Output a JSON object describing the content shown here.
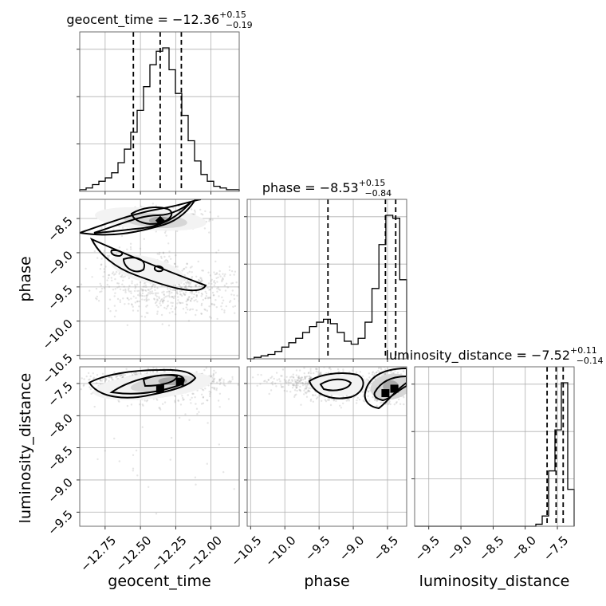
{
  "chart_data": {
    "type": "scatter",
    "subtype": "corner-plot",
    "parameters": [
      {
        "name": "geocent_time",
        "median": -12.36,
        "err_plus": 0.15,
        "err_minus": 0.19,
        "range": [
          -12.93,
          -11.8
        ]
      },
      {
        "name": "phase",
        "median": -8.53,
        "err_plus": 0.15,
        "err_minus": 0.84,
        "range": [
          -10.55,
          -8.22
        ]
      },
      {
        "name": "luminosity_distance",
        "median": -7.52,
        "err_plus": 0.11,
        "err_minus": 0.14,
        "range": [
          -9.72,
          -7.24
        ]
      }
    ],
    "titles": {
      "geocent_time": {
        "prefix": "geocent_time = −12.36",
        "plus": "+0.15",
        "minus": "−0.19"
      },
      "phase": {
        "prefix": "phase = −8.53",
        "plus": "+0.15",
        "minus": "−0.84"
      },
      "luminosity_distance": {
        "prefix": "luminosity_distance = −7.52",
        "plus": "+0.11",
        "minus": "−0.14"
      }
    },
    "axis_labels": {
      "x": [
        "geocent_time",
        "phase",
        "luminosity_distance"
      ],
      "y": [
        "phase",
        "luminosity_distance"
      ]
    },
    "ticks": {
      "geocent_time": [
        -12.75,
        -12.5,
        -12.25,
        -12.0
      ],
      "phase": [
        -10.5,
        -10.0,
        -9.5,
        -9.0,
        -8.5
      ],
      "luminosity_distance": [
        -9.5,
        -9.0,
        -8.5,
        -8.0,
        -7.5
      ]
    },
    "tick_labels": {
      "geocent_time": [
        "−12.75",
        "−12.50",
        "−12.25",
        "−12.00"
      ],
      "phase": [
        "−10.5",
        "−10.0",
        "−9.5",
        "−9.0",
        "−8.5"
      ],
      "luminosity_distance": [
        "−9.5",
        "−9.0",
        "−8.5",
        "−8.0",
        "−7.5"
      ]
    },
    "quantiles": {
      "geocent_time": [
        -12.55,
        -12.36,
        -12.21
      ],
      "phase": [
        -9.37,
        -8.53,
        -8.38
      ],
      "luminosity_distance": [
        -7.66,
        -7.52,
        -7.41
      ]
    },
    "histograms": {
      "geocent_time": {
        "edges_from": -12.93,
        "edges_to": -11.8,
        "counts": [
          1,
          2,
          4,
          6,
          8,
          11,
          17,
          25,
          35,
          48,
          62,
          75,
          83,
          85,
          72,
          58,
          45,
          30,
          18,
          10,
          6,
          3,
          2,
          1,
          1
        ]
      },
      "phase": {
        "edges_from": -10.55,
        "edges_to": -8.22,
        "counts": [
          0,
          1,
          2,
          3,
          5,
          8,
          11,
          14,
          18,
          22,
          25,
          27,
          24,
          18,
          12,
          10,
          14,
          25,
          48,
          78,
          98,
          96,
          54
        ]
      },
      "luminosity_distance": {
        "edges_from": -9.72,
        "edges_to": -7.24,
        "counts": [
          0,
          0,
          0,
          0,
          0,
          0,
          0,
          0,
          0,
          0,
          0,
          0,
          0,
          0,
          0,
          0,
          0,
          0,
          0,
          1,
          5,
          27,
          47,
          70,
          18
        ]
      }
    },
    "grid": true,
    "markers": [
      {
        "x_param": "geocent_time",
        "y_param": "phase",
        "x": -12.36,
        "y": -8.53,
        "shape": "diamond"
      },
      {
        "x_param": "geocent_time",
        "y_param": "luminosity_distance",
        "x": -12.36,
        "y": -7.58,
        "shape": "square"
      },
      {
        "x_param": "geocent_time",
        "y_param": "luminosity_distance",
        "x": -12.22,
        "y": -7.47,
        "shape": "square"
      },
      {
        "x_param": "phase",
        "y_param": "luminosity_distance",
        "x": -8.53,
        "y": -7.65,
        "shape": "square"
      },
      {
        "x_param": "phase",
        "y_param": "luminosity_distance",
        "x": -8.4,
        "y": -7.58,
        "shape": "square"
      }
    ],
    "colors": {
      "contours": "#000000",
      "density": "#8a8a8a",
      "grid": "#b0b0b0"
    }
  }
}
